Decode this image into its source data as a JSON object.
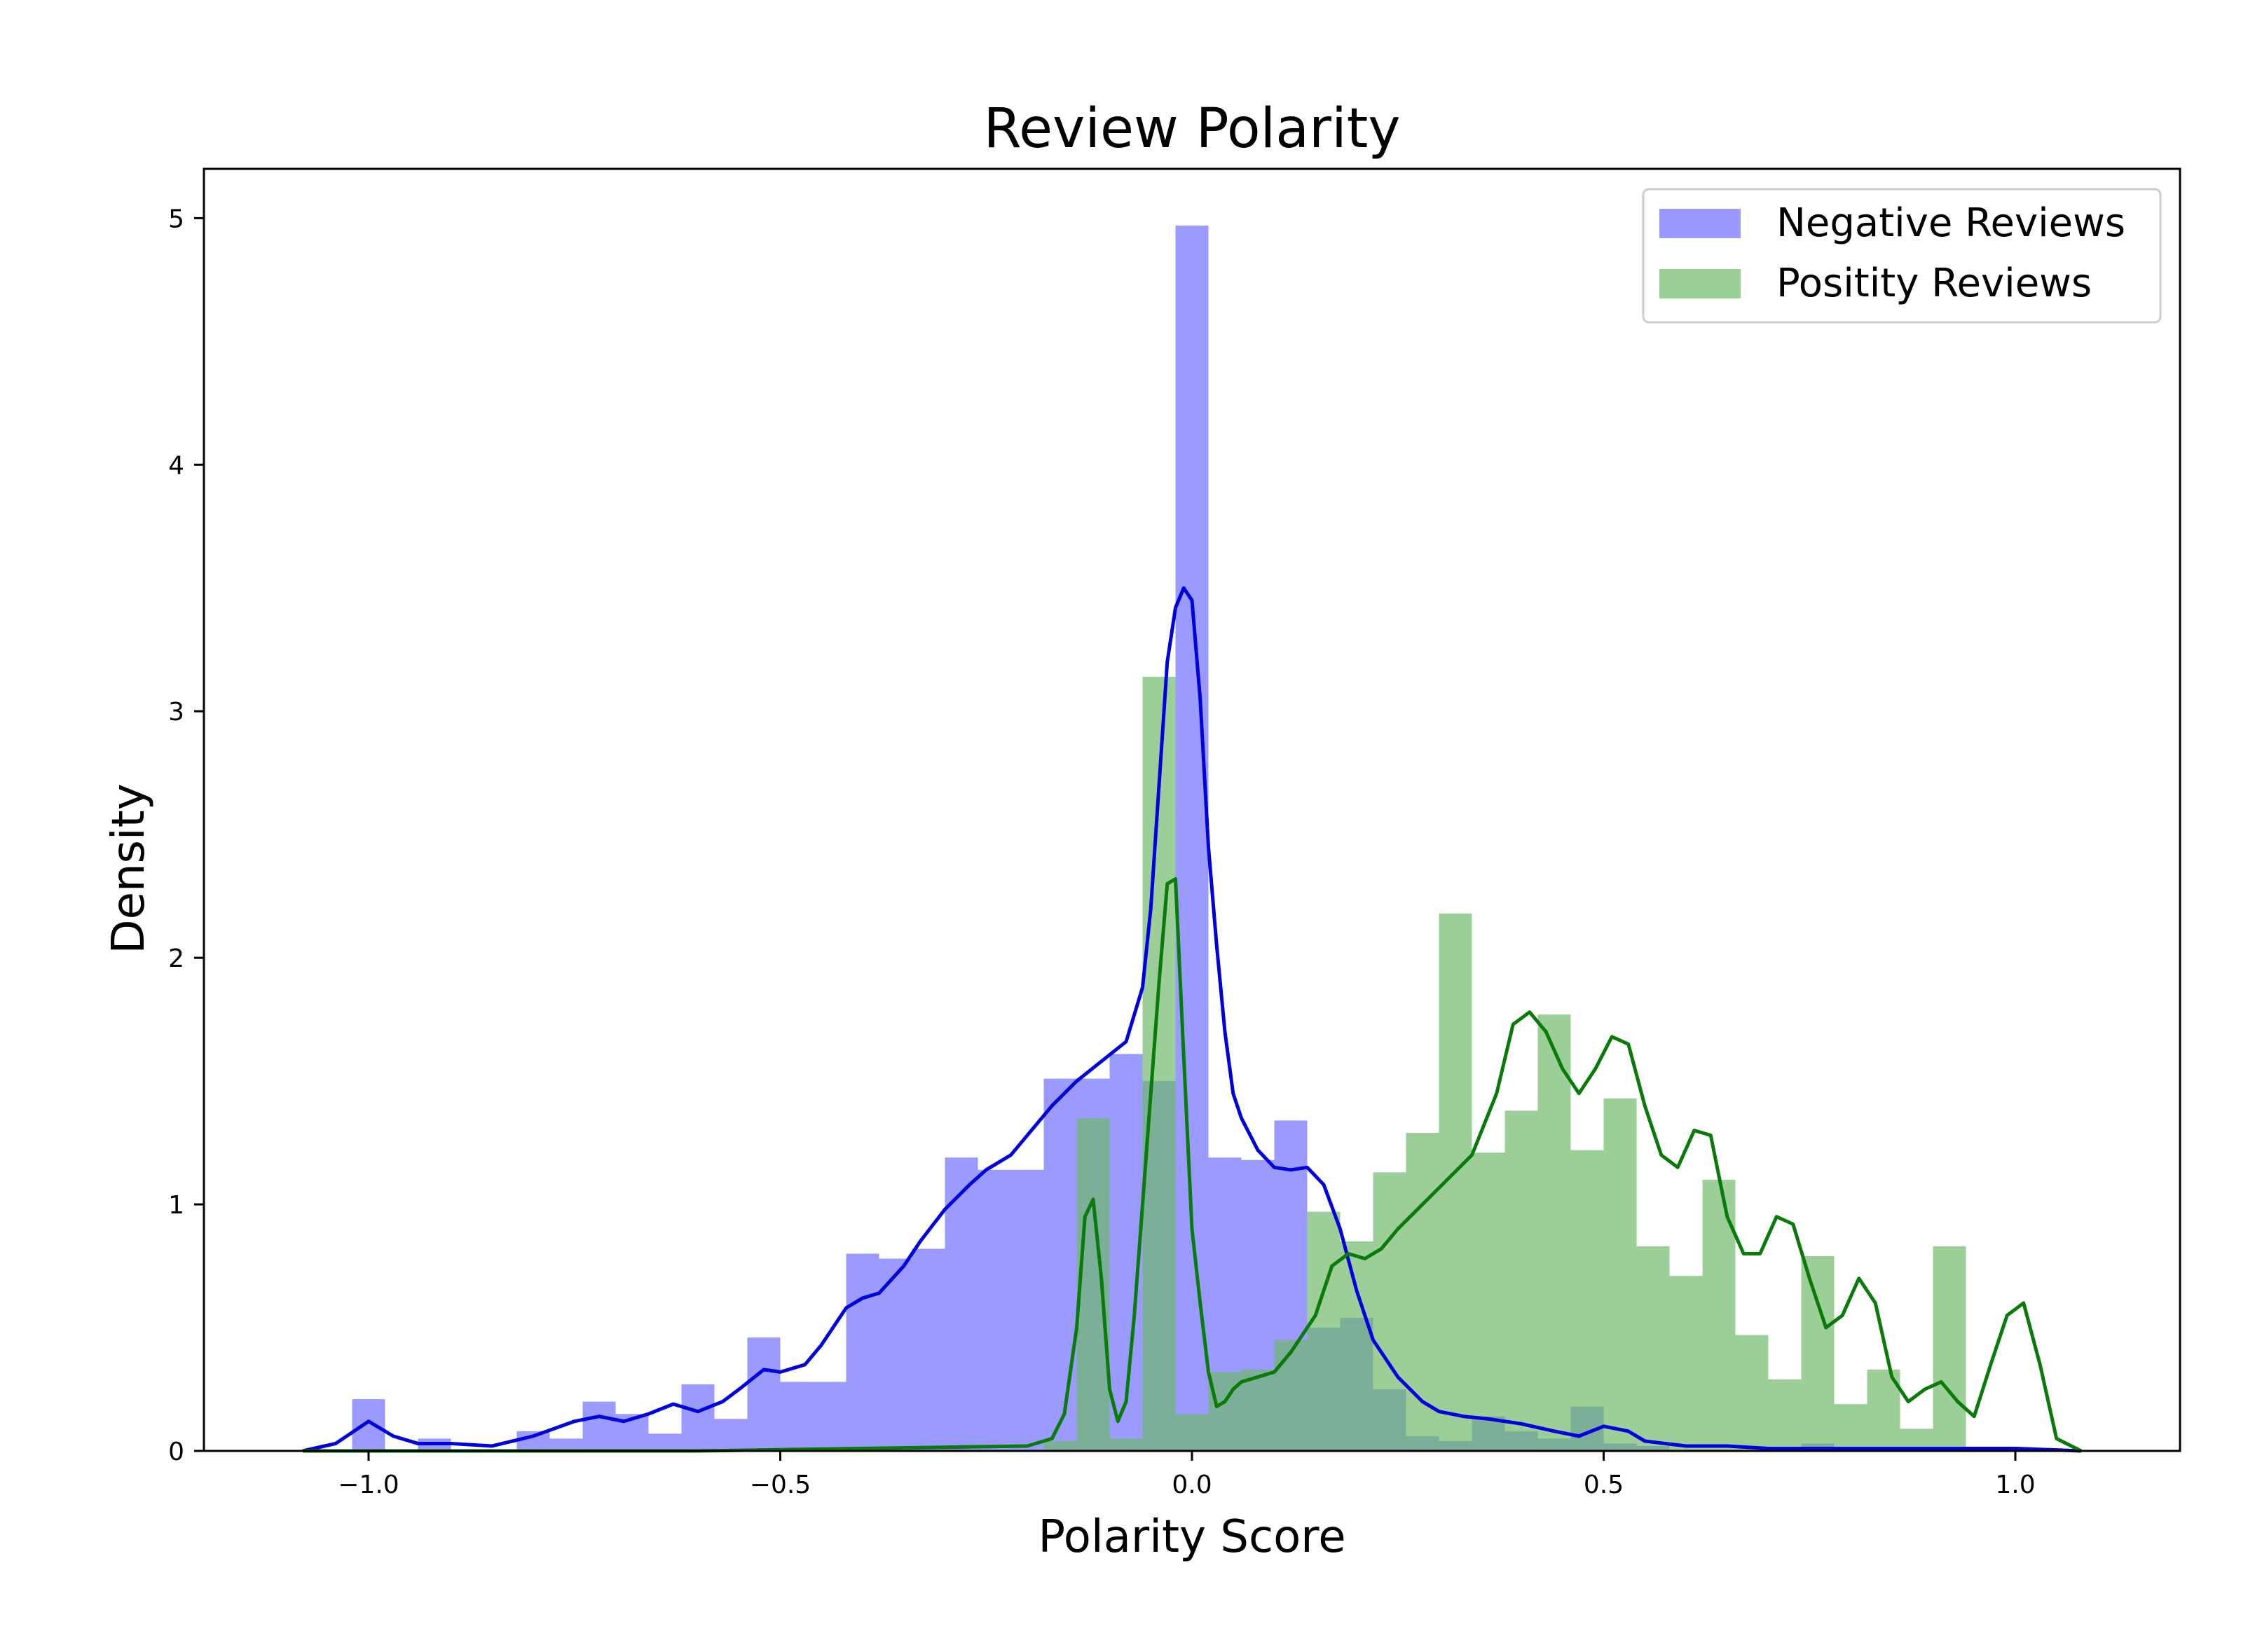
{
  "chart_data": {
    "type": "histogram",
    "title": "Review Polarity",
    "xlabel": "Polarity Score",
    "ylabel": "Density",
    "xlim": [
      -1.2,
      1.2
    ],
    "ylim": [
      0,
      5.2
    ],
    "xticks": [
      -1.0,
      -0.5,
      0.0,
      0.5,
      1.0
    ],
    "xtick_labels": [
      "−1.0",
      "−0.5",
      "0.0",
      "0.5",
      "1.0"
    ],
    "yticks": [
      0,
      1,
      2,
      3,
      4,
      5
    ],
    "ytick_labels": [
      "0",
      "1",
      "2",
      "3",
      "4",
      "5"
    ],
    "grid": false,
    "legend_position": "top-right",
    "bin_width": 0.04,
    "series": [
      {
        "name": "Negative Reviews",
        "kind": "histogram",
        "color": "#6b6bff",
        "opacity": 0.68,
        "bin_edges_start": -1.02,
        "values": [
          0.21,
          0.0,
          0.05,
          0.0,
          0.0,
          0.08,
          0.05,
          0.2,
          0.15,
          0.07,
          0.27,
          0.13,
          0.46,
          0.28,
          0.28,
          0.8,
          0.78,
          0.82,
          1.19,
          1.14,
          1.14,
          1.51,
          1.51,
          1.61,
          1.5,
          4.97,
          1.19,
          1.18,
          1.34,
          0.5,
          0.54,
          0.25,
          0.06,
          0.04,
          0.14,
          0.08,
          0.05,
          0.18,
          0.03,
          0.02,
          0.0,
          0.0,
          0.0,
          0.0,
          0.03,
          0.0,
          0.0,
          0.01,
          0.0,
          0.0,
          0.0
        ]
      },
      {
        "name": "Positity Reviews",
        "kind": "histogram",
        "color": "#6cb866",
        "opacity": 0.68,
        "bin_edges_start": -0.18,
        "values": [
          0.04,
          1.35,
          0.05,
          3.14,
          0.15,
          0.32,
          0.33,
          0.45,
          0.97,
          0.85,
          1.13,
          1.29,
          2.18,
          1.21,
          1.38,
          1.77,
          1.22,
          1.43,
          0.83,
          0.71,
          1.1,
          0.47,
          0.29,
          0.79,
          0.19,
          0.33,
          0.09,
          0.83
        ]
      },
      {
        "name": "Negative Reviews KDE",
        "kind": "line",
        "color": "#0000dd",
        "x": [
          -1.08,
          -1.04,
          -1.0,
          -0.97,
          -0.94,
          -0.9,
          -0.85,
          -0.8,
          -0.75,
          -0.72,
          -0.69,
          -0.66,
          -0.63,
          -0.6,
          -0.57,
          -0.55,
          -0.52,
          -0.5,
          -0.47,
          -0.45,
          -0.42,
          -0.4,
          -0.38,
          -0.35,
          -0.33,
          -0.3,
          -0.27,
          -0.25,
          -0.22,
          -0.2,
          -0.17,
          -0.14,
          -0.11,
          -0.08,
          -0.06,
          -0.05,
          -0.04,
          -0.03,
          -0.02,
          -0.01,
          0.0,
          0.01,
          0.02,
          0.03,
          0.04,
          0.05,
          0.06,
          0.08,
          0.1,
          0.12,
          0.14,
          0.16,
          0.18,
          0.2,
          0.22,
          0.25,
          0.28,
          0.3,
          0.33,
          0.36,
          0.4,
          0.44,
          0.47,
          0.5,
          0.53,
          0.55,
          0.6,
          0.65,
          0.7,
          0.75,
          0.8,
          0.85,
          0.9,
          1.0,
          1.08
        ],
        "y": [
          0.0,
          0.03,
          0.12,
          0.06,
          0.03,
          0.03,
          0.02,
          0.06,
          0.12,
          0.14,
          0.12,
          0.15,
          0.19,
          0.16,
          0.2,
          0.25,
          0.33,
          0.32,
          0.35,
          0.43,
          0.58,
          0.62,
          0.64,
          0.75,
          0.85,
          0.98,
          1.08,
          1.14,
          1.2,
          1.28,
          1.4,
          1.5,
          1.58,
          1.66,
          1.88,
          2.2,
          2.7,
          3.2,
          3.42,
          3.5,
          3.45,
          3.05,
          2.45,
          2.05,
          1.7,
          1.45,
          1.35,
          1.22,
          1.15,
          1.14,
          1.15,
          1.08,
          0.9,
          0.65,
          0.45,
          0.3,
          0.2,
          0.16,
          0.14,
          0.13,
          0.11,
          0.08,
          0.06,
          0.1,
          0.08,
          0.04,
          0.02,
          0.02,
          0.01,
          0.01,
          0.01,
          0.01,
          0.01,
          0.01,
          0.0
        ]
      },
      {
        "name": "Positity Reviews KDE",
        "kind": "line",
        "color": "#0a7a0a",
        "x": [
          -1.08,
          -0.6,
          -0.2,
          -0.17,
          -0.155,
          -0.14,
          -0.13,
          -0.12,
          -0.11,
          -0.1,
          -0.09,
          -0.08,
          -0.07,
          -0.06,
          -0.04,
          -0.03,
          -0.02,
          -0.01,
          0.0,
          0.01,
          0.02,
          0.03,
          0.04,
          0.05,
          0.06,
          0.08,
          0.1,
          0.12,
          0.15,
          0.17,
          0.19,
          0.21,
          0.23,
          0.25,
          0.28,
          0.31,
          0.34,
          0.37,
          0.39,
          0.41,
          0.43,
          0.45,
          0.47,
          0.49,
          0.51,
          0.53,
          0.55,
          0.57,
          0.59,
          0.61,
          0.63,
          0.65,
          0.67,
          0.69,
          0.71,
          0.73,
          0.75,
          0.77,
          0.79,
          0.81,
          0.83,
          0.85,
          0.87,
          0.89,
          0.91,
          0.93,
          0.95,
          0.97,
          0.99,
          1.01,
          1.03,
          1.05,
          1.08
        ],
        "y": [
          0.0,
          0.0,
          0.02,
          0.05,
          0.15,
          0.5,
          0.95,
          1.02,
          0.7,
          0.25,
          0.12,
          0.2,
          0.55,
          1.0,
          1.9,
          2.3,
          2.32,
          1.6,
          0.9,
          0.6,
          0.32,
          0.18,
          0.2,
          0.25,
          0.28,
          0.3,
          0.32,
          0.4,
          0.55,
          0.75,
          0.8,
          0.78,
          0.82,
          0.9,
          1.0,
          1.1,
          1.2,
          1.45,
          1.73,
          1.78,
          1.7,
          1.55,
          1.45,
          1.55,
          1.68,
          1.65,
          1.4,
          1.2,
          1.15,
          1.3,
          1.28,
          0.95,
          0.8,
          0.8,
          0.95,
          0.92,
          0.7,
          0.5,
          0.55,
          0.7,
          0.6,
          0.3,
          0.2,
          0.25,
          0.28,
          0.2,
          0.14,
          0.35,
          0.55,
          0.6,
          0.35,
          0.05,
          0.0
        ]
      }
    ],
    "legend": [
      {
        "label": "Negative Reviews",
        "color": "#9999ff"
      },
      {
        "label": "Positity Reviews",
        "color": "#9ccf96"
      }
    ]
  }
}
